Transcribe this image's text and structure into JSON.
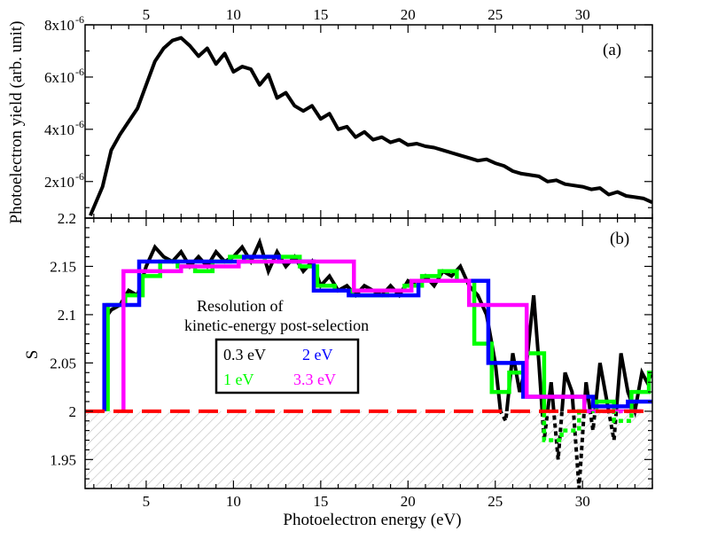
{
  "chart_data": [
    {
      "type": "line",
      "panel_label": "(a)",
      "ylabel": "Photoelectron yield (arb. unit)",
      "xlim": [
        1.5,
        34
      ],
      "ylim": [
        6e-07,
        8e-06
      ],
      "top_x_ticks": [
        "5",
        "10",
        "15",
        "20",
        "25",
        "30"
      ],
      "y_ticks": [
        {
          "value": 8e-06,
          "mantissa": "8x10",
          "exp": "-6"
        },
        {
          "value": 6e-06,
          "mantissa": "6x10",
          "exp": "-6"
        },
        {
          "value": 4e-06,
          "mantissa": "4x10",
          "exp": "-6"
        },
        {
          "value": 2e-06,
          "mantissa": "2x10",
          "exp": "-6"
        }
      ],
      "series": [
        {
          "color": "#000000",
          "x": [
            1.8,
            2.5,
            3.0,
            3.5,
            4.0,
            4.5,
            5.0,
            5.5,
            6.0,
            6.5,
            7.0,
            7.5,
            8.0,
            8.5,
            9.0,
            9.5,
            10.0,
            10.5,
            11.0,
            11.5,
            12.0,
            12.5,
            13.0,
            13.5,
            14.0,
            14.5,
            15.0,
            15.5,
            16.0,
            16.5,
            17.0,
            17.5,
            18.0,
            18.5,
            19.0,
            19.5,
            20.0,
            20.5,
            21.0,
            21.5,
            22.0,
            22.5,
            23.0,
            23.5,
            24.0,
            24.5,
            25.0,
            25.5,
            26.0,
            26.5,
            27.0,
            27.5,
            28.0,
            28.5,
            29.0,
            29.5,
            30.0,
            30.5,
            31.0,
            31.5,
            32.0,
            32.5,
            33.0,
            33.5,
            34.0
          ],
          "y": [
            7e-07,
            1.8e-06,
            3.2e-06,
            3.8e-06,
            4.3e-06,
            4.8e-06,
            5.7e-06,
            6.6e-06,
            7.1e-06,
            7.4e-06,
            7.5e-06,
            7.2e-06,
            6.8e-06,
            7.1e-06,
            6.5e-06,
            6.9e-06,
            6.2e-06,
            6.4e-06,
            6.3e-06,
            5.7e-06,
            6.1e-06,
            5.2e-06,
            5.4e-06,
            4.9e-06,
            4.7e-06,
            4.9e-06,
            4.4e-06,
            4.6e-06,
            4e-06,
            4.1e-06,
            3.7e-06,
            3.9e-06,
            3.6e-06,
            3.7e-06,
            3.5e-06,
            3.6e-06,
            3.4e-06,
            3.45e-06,
            3.35e-06,
            3.3e-06,
            3.2e-06,
            3.1e-06,
            3e-06,
            2.9e-06,
            2.8e-06,
            2.85e-06,
            2.7e-06,
            2.6e-06,
            2.4e-06,
            2.3e-06,
            2.25e-06,
            2.2e-06,
            2e-06,
            2.05e-06,
            1.9e-06,
            1.85e-06,
            1.8e-06,
            1.7e-06,
            1.75e-06,
            1.5e-06,
            1.6e-06,
            1.45e-06,
            1.4e-06,
            1.35e-06,
            1.2e-06
          ]
        }
      ]
    },
    {
      "type": "line",
      "panel_label": "(b)",
      "xlabel": "Photoelectron energy (eV)",
      "ylabel": "S",
      "xlim": [
        1.5,
        34
      ],
      "ylim": [
        1.92,
        2.2
      ],
      "x_ticks": [
        "5",
        "10",
        "15",
        "20",
        "25",
        "30"
      ],
      "y_ticks": [
        "2.2",
        "2.15",
        "2.1",
        "2.05",
        "2",
        "1.95"
      ],
      "threshold": {
        "value": 2.0,
        "color": "#ff0000"
      },
      "hatch_below": 2.0,
      "legend": {
        "title_line1": "Resolution of",
        "title_line2": "kinetic-energy post-selection",
        "entries": [
          {
            "label": "0.3 eV",
            "color": "#000000"
          },
          {
            "label": "2 eV",
            "color": "#0000ff"
          },
          {
            "label": "1 eV",
            "color": "#00ff00"
          },
          {
            "label": "3.3 eV",
            "color": "#ff00ff"
          }
        ]
      },
      "series": [
        {
          "color": "#000000",
          "x": [
            2.6,
            2.8,
            3.0,
            3.5,
            4.0,
            4.5,
            5.0,
            5.5,
            6.0,
            6.5,
            7.0,
            7.5,
            8.0,
            8.5,
            9.0,
            9.5,
            10.0,
            10.5,
            11.0,
            11.5,
            12.0,
            12.5,
            13.0,
            13.5,
            14.0,
            14.5,
            15.0,
            15.5,
            16.0,
            16.5,
            17.0,
            17.5,
            18.0,
            18.5,
            19.0,
            19.5,
            20.0,
            20.5,
            21.0,
            21.5,
            22.0,
            22.5,
            23.0,
            23.5,
            24.0,
            24.5,
            25.0,
            25.3,
            25.6,
            26.0,
            26.4,
            26.8,
            27.2,
            27.5,
            27.8,
            28.2,
            28.6,
            29.0,
            29.4,
            29.8,
            30.2,
            30.6,
            31.0,
            31.4,
            31.8,
            32.2,
            32.6,
            33.0,
            33.4,
            33.7,
            34.0
          ],
          "y": [
            2.0,
            2.1,
            2.105,
            2.11,
            2.125,
            2.12,
            2.15,
            2.17,
            2.16,
            2.155,
            2.165,
            2.15,
            2.16,
            2.15,
            2.165,
            2.155,
            2.16,
            2.17,
            2.155,
            2.175,
            2.145,
            2.165,
            2.15,
            2.16,
            2.145,
            2.155,
            2.13,
            2.14,
            2.125,
            2.13,
            2.12,
            2.13,
            2.125,
            2.12,
            2.13,
            2.12,
            2.135,
            2.13,
            2.14,
            2.13,
            2.145,
            2.14,
            2.15,
            2.13,
            2.12,
            2.1,
            2.05,
            2.0,
            1.99,
            2.06,
            2.02,
            2.05,
            2.12,
            2.05,
            1.97,
            2.03,
            1.95,
            2.04,
            2.02,
            1.92,
            2.03,
            1.98,
            2.05,
            2.01,
            1.97,
            2.06,
            2.02,
            2.0,
            2.04,
            2.03,
            2.04
          ]
        },
        {
          "color": "#00ff00",
          "x": [
            2.8,
            2.8,
            3.8,
            3.8,
            4.8,
            4.8,
            5.8,
            5.8,
            6.8,
            6.8,
            7.8,
            7.8,
            8.8,
            8.8,
            9.8,
            9.8,
            10.8,
            10.8,
            11.8,
            11.8,
            12.8,
            12.8,
            13.8,
            13.8,
            14.8,
            14.8,
            15.8,
            15.8,
            16.8,
            16.8,
            17.8,
            17.8,
            18.8,
            18.8,
            19.8,
            19.8,
            20.8,
            20.8,
            21.8,
            21.8,
            22.8,
            22.8,
            23.8,
            23.8,
            24.8,
            24.8,
            25.8,
            25.8,
            26.8,
            26.8,
            27.8,
            27.8,
            28.8,
            28.8,
            29.8,
            29.8,
            30.8,
            30.8,
            31.8,
            31.8,
            32.8,
            32.8,
            33.8,
            33.8,
            34.0
          ],
          "y": [
            2.0,
            2.11,
            2.11,
            2.12,
            2.12,
            2.14,
            2.14,
            2.155,
            2.155,
            2.15,
            2.15,
            2.145,
            2.145,
            2.155,
            2.155,
            2.16,
            2.16,
            2.155,
            2.155,
            2.16,
            2.16,
            2.16,
            2.16,
            2.15,
            2.15,
            2.13,
            2.13,
            2.125,
            2.125,
            2.12,
            2.12,
            2.12,
            2.12,
            2.125,
            2.125,
            2.13,
            2.13,
            2.14,
            2.14,
            2.145,
            2.145,
            2.135,
            2.135,
            2.07,
            2.07,
            2.02,
            2.02,
            2.04,
            2.04,
            2.06,
            2.06,
            1.97,
            1.97,
            1.98,
            1.98,
            2.0,
            2.0,
            2.01,
            2.01,
            1.99,
            1.99,
            2.02,
            2.02,
            2.04,
            2.04
          ]
        },
        {
          "color": "#0000ff",
          "x": [
            2.6,
            2.6,
            4.6,
            4.6,
            6.6,
            6.6,
            8.6,
            8.6,
            10.6,
            10.6,
            12.6,
            12.6,
            14.6,
            14.6,
            16.6,
            16.6,
            18.6,
            18.6,
            20.6,
            20.6,
            22.6,
            22.6,
            24.6,
            24.6,
            26.6,
            26.6,
            28.6,
            28.6,
            30.6,
            30.6,
            32.6,
            32.6,
            34.0
          ],
          "y": [
            2.0,
            2.11,
            2.11,
            2.155,
            2.155,
            2.155,
            2.155,
            2.155,
            2.155,
            2.16,
            2.16,
            2.155,
            2.155,
            2.125,
            2.125,
            2.12,
            2.12,
            2.12,
            2.12,
            2.135,
            2.135,
            2.135,
            2.135,
            2.05,
            2.05,
            2.015,
            2.015,
            2.015,
            2.015,
            2.005,
            2.005,
            2.01,
            2.01
          ]
        },
        {
          "color": "#ff00ff",
          "x": [
            3.7,
            3.7,
            7.0,
            7.0,
            10.3,
            10.3,
            13.6,
            13.6,
            16.9,
            16.9,
            20.2,
            20.2,
            23.5,
            23.5,
            26.8,
            26.8,
            30.1,
            30.1,
            33.4,
            33.4
          ],
          "y": [
            2.0,
            2.145,
            2.145,
            2.15,
            2.15,
            2.155,
            2.155,
            2.155,
            2.155,
            2.125,
            2.125,
            2.135,
            2.135,
            2.11,
            2.11,
            2.015,
            2.015,
            2.0,
            2.0,
            2.0
          ]
        }
      ]
    }
  ]
}
